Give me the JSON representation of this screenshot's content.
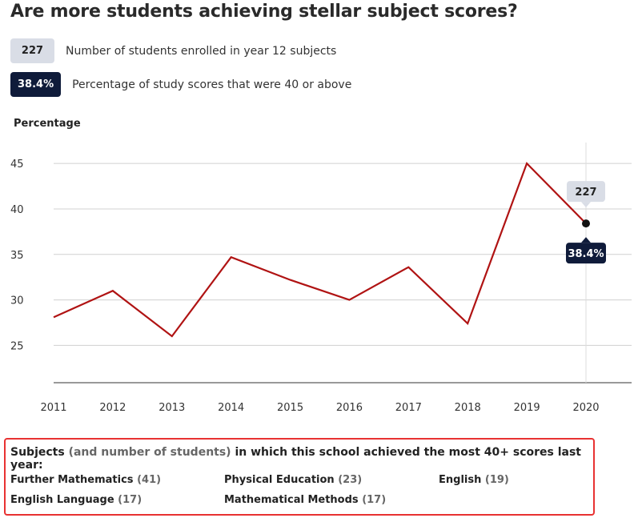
{
  "title": "Are more students achieving stellar subject scores?",
  "legend": {
    "enrolled": {
      "badge": "227",
      "text": "Number of students enrolled in year 12 subjects"
    },
    "percent": {
      "badge": "38.4%",
      "text": "Percentage of study scores that were 40 or above"
    }
  },
  "colors": {
    "line": "#b01313",
    "badge_light": "#d9dde6",
    "badge_dark": "#0f1b3a",
    "highlight_border": "#e83232"
  },
  "chart_data": {
    "type": "line",
    "title": "Are more students achieving stellar subject scores?",
    "ylabel": "Percentage",
    "xlabel": "",
    "x": [
      "2011",
      "2012",
      "2013",
      "2014",
      "2015",
      "2016",
      "2017",
      "2018",
      "2019",
      "2020"
    ],
    "series": [
      {
        "values": [
          28.1,
          31.0,
          26.0,
          34.7,
          32.2,
          30.0,
          33.6,
          27.4,
          45.0,
          38.4
        ]
      }
    ],
    "yticks": [
      25,
      30,
      35,
      40,
      45
    ],
    "ylim": [
      20.9,
      47.3
    ],
    "grid": true,
    "tooltip": {
      "x": "2020",
      "enrolled": "227",
      "percent": "38.4%"
    }
  },
  "subjects": {
    "heading_a": "Subjects",
    "heading_b": "(and number of students)",
    "heading_c": "in which this school achieved the most 40+ scores last year:",
    "items": [
      {
        "name": "Further Mathematics",
        "count": "(41)"
      },
      {
        "name": "Physical Education",
        "count": "(23)"
      },
      {
        "name": "English",
        "count": "(19)"
      },
      {
        "name": "English Language",
        "count": "(17)"
      },
      {
        "name": "Mathematical Methods",
        "count": "(17)"
      }
    ]
  }
}
